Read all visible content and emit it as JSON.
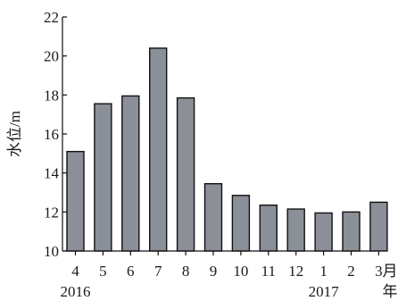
{
  "chart_data": {
    "type": "bar",
    "categories": [
      "4",
      "5",
      "6",
      "7",
      "8",
      "9",
      "10",
      "11",
      "12",
      "1",
      "2",
      "3"
    ],
    "values": [
      15.1,
      17.55,
      17.95,
      20.4,
      17.85,
      13.45,
      12.85,
      12.35,
      12.15,
      11.95,
      12.0,
      12.5
    ],
    "ylabel": "水位/m",
    "xlabel": "月",
    "xlabel2": "年",
    "year_labels": [
      {
        "text": "2016",
        "category_index": 0
      },
      {
        "text": "2017",
        "category_index": 9
      }
    ],
    "ylim": [
      10,
      22
    ],
    "yticks": [
      10,
      12,
      14,
      16,
      18,
      20,
      22
    ],
    "bar_color": "#8a8f98",
    "bar_stroke": "#111111",
    "grid": false,
    "legend": "none"
  }
}
